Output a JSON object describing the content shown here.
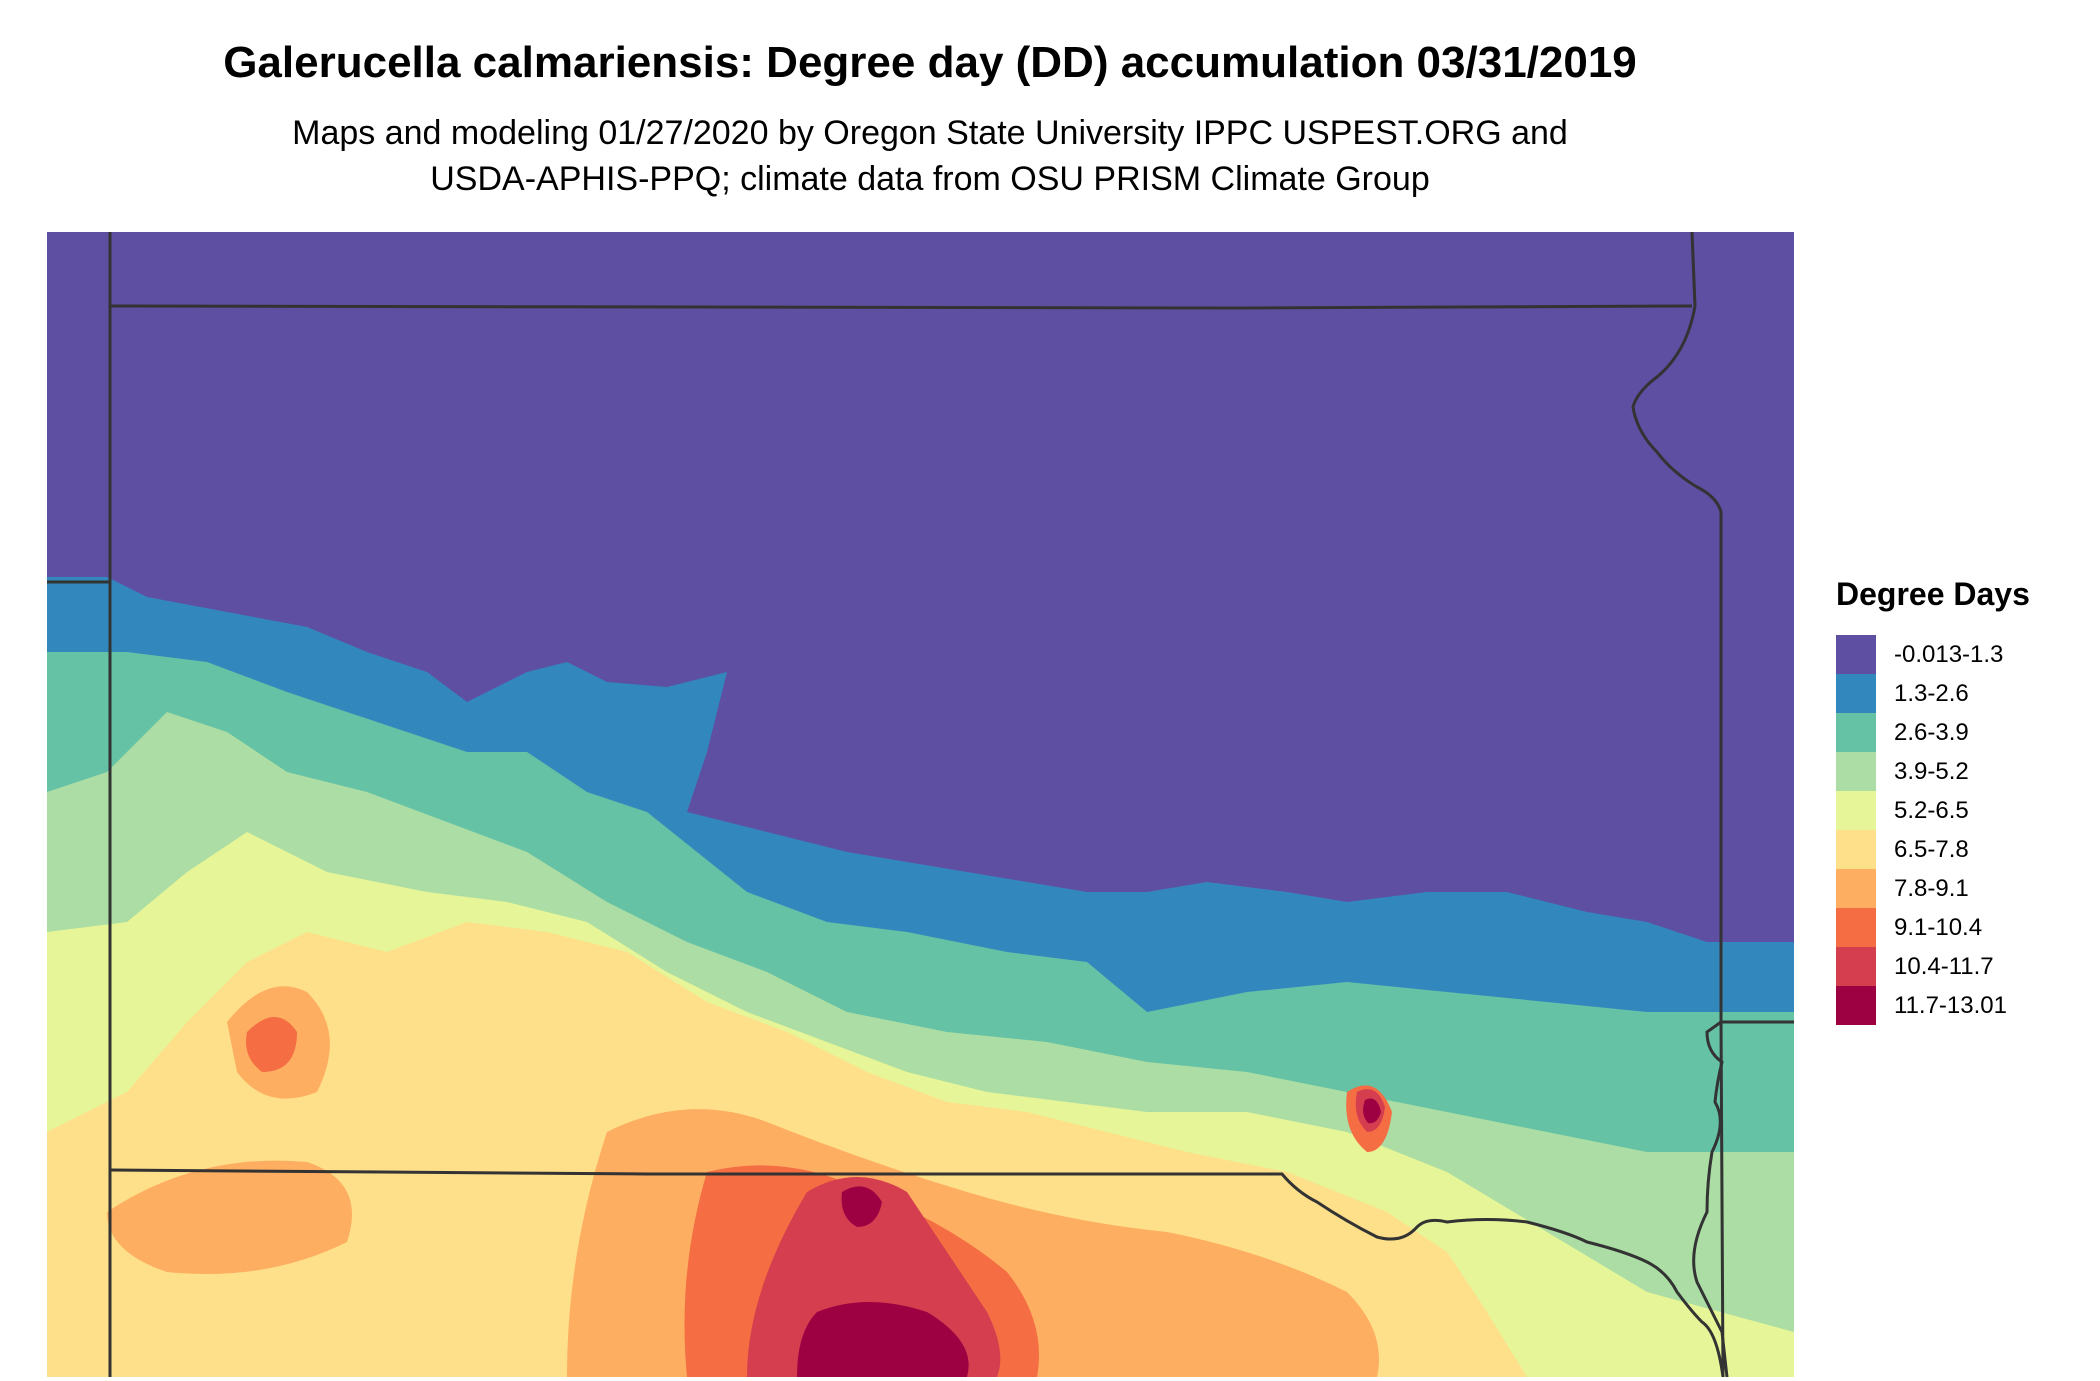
{
  "title": "Galerucella calmariensis: Degree day (DD) accumulation 03/31/2019",
  "subtitle_line1": "Maps and modeling 01/27/2020 by Oregon State University IPPC USPEST.ORG and",
  "subtitle_line2": "USDA-APHIS-PPQ; climate data from OSU PRISM Climate Group",
  "legend": {
    "title": "Degree Days",
    "items": [
      {
        "label": "-0.013-1.3",
        "color": "#5e4fa2"
      },
      {
        "label": "1.3-2.6",
        "color": "#3288bd"
      },
      {
        "label": "2.6-3.9",
        "color": "#66c2a5"
      },
      {
        "label": "3.9-5.2",
        "color": "#abdda4"
      },
      {
        "label": "5.2-6.5",
        "color": "#e6f598"
      },
      {
        "label": "6.5-7.8",
        "color": "#fee08b"
      },
      {
        "label": "7.8-9.1",
        "color": "#fdae61"
      },
      {
        "label": "9.1-10.4",
        "color": "#f46d43"
      },
      {
        "label": "10.4-11.7",
        "color": "#d53e4f"
      },
      {
        "label": "11.7-13.01",
        "color": "#9e0142"
      }
    ]
  },
  "map_colors": {
    "border": "#333333"
  }
}
